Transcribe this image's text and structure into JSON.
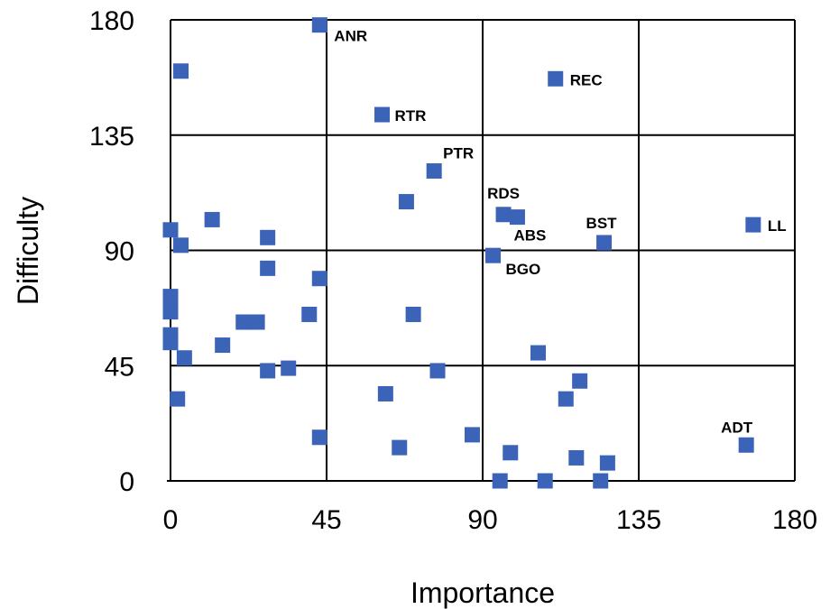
{
  "chart_data": {
    "type": "scatter",
    "xlabel": "Importance",
    "ylabel": "Difficulty",
    "xlim": [
      0,
      180
    ],
    "ylim": [
      0,
      180
    ],
    "x_ticks": [
      "0",
      "45",
      "90",
      "135",
      "180"
    ],
    "y_ticks": [
      "0",
      "45",
      "90",
      "135",
      "180"
    ],
    "grid": true,
    "marker_color": "#3b64b8",
    "points": [
      {
        "x": 43,
        "y": 178,
        "label": "ANR"
      },
      {
        "x": 3,
        "y": 160,
        "label": ""
      },
      {
        "x": 111,
        "y": 157,
        "label": "REC"
      },
      {
        "x": 61,
        "y": 143,
        "label": "RTR"
      },
      {
        "x": 76,
        "y": 121,
        "label": "PTR"
      },
      {
        "x": 68,
        "y": 109,
        "label": ""
      },
      {
        "x": 96,
        "y": 104,
        "label": "RDS"
      },
      {
        "x": 100,
        "y": 103,
        "label": "ABS"
      },
      {
        "x": 12,
        "y": 102,
        "label": ""
      },
      {
        "x": 0,
        "y": 98,
        "label": ""
      },
      {
        "x": 28,
        "y": 95,
        "label": ""
      },
      {
        "x": 3,
        "y": 92,
        "label": ""
      },
      {
        "x": 125,
        "y": 93,
        "label": "BST"
      },
      {
        "x": 168,
        "y": 100,
        "label": "LL"
      },
      {
        "x": 93,
        "y": 88,
        "label": "BGO"
      },
      {
        "x": 28,
        "y": 83,
        "label": ""
      },
      {
        "x": 43,
        "y": 79,
        "label": ""
      },
      {
        "x": 0,
        "y": 72,
        "label": ""
      },
      {
        "x": 0,
        "y": 70,
        "label": ""
      },
      {
        "x": 0,
        "y": 66,
        "label": ""
      },
      {
        "x": 40,
        "y": 65,
        "label": ""
      },
      {
        "x": 70,
        "y": 65,
        "label": ""
      },
      {
        "x": 21,
        "y": 62,
        "label": ""
      },
      {
        "x": 25,
        "y": 62,
        "label": ""
      },
      {
        "x": 0,
        "y": 57,
        "label": ""
      },
      {
        "x": 0,
        "y": 54,
        "label": ""
      },
      {
        "x": 15,
        "y": 53,
        "label": ""
      },
      {
        "x": 106,
        "y": 50,
        "label": ""
      },
      {
        "x": 4,
        "y": 48,
        "label": ""
      },
      {
        "x": 28,
        "y": 43,
        "label": ""
      },
      {
        "x": 34,
        "y": 44,
        "label": ""
      },
      {
        "x": 77,
        "y": 43,
        "label": ""
      },
      {
        "x": 118,
        "y": 39,
        "label": ""
      },
      {
        "x": 62,
        "y": 34,
        "label": ""
      },
      {
        "x": 114,
        "y": 32,
        "label": ""
      },
      {
        "x": 2,
        "y": 32,
        "label": ""
      },
      {
        "x": 43,
        "y": 17,
        "label": ""
      },
      {
        "x": 87,
        "y": 18,
        "label": ""
      },
      {
        "x": 166,
        "y": 14,
        "label": "ADT"
      },
      {
        "x": 66,
        "y": 13,
        "label": ""
      },
      {
        "x": 98,
        "y": 11,
        "label": ""
      },
      {
        "x": 117,
        "y": 9,
        "label": ""
      },
      {
        "x": 126,
        "y": 7,
        "label": ""
      },
      {
        "x": 95,
        "y": 0,
        "label": ""
      },
      {
        "x": 108,
        "y": 0,
        "label": ""
      },
      {
        "x": 124,
        "y": 0,
        "label": ""
      }
    ]
  }
}
